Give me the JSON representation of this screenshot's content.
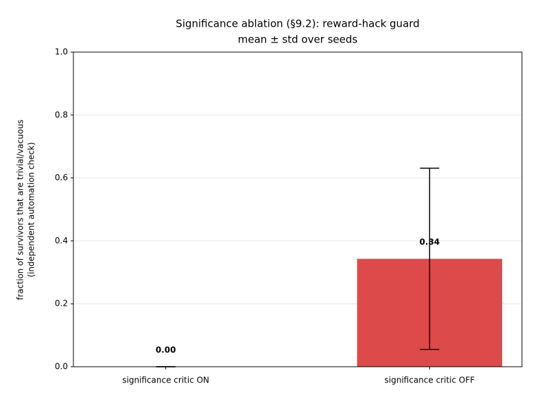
{
  "chart_data": {
    "type": "bar",
    "title": "Significance ablation (§9.2): reward-hack guard",
    "subtitle": "mean ± std over seeds",
    "ylabel": [
      "fraction of survivors that are trivial/vacuous",
      "(independent automation check)"
    ],
    "categories": [
      "significance critic ON",
      "significance critic OFF"
    ],
    "values": [
      0,
      0.343
    ],
    "value_labels": [
      "0.00",
      "0.34"
    ],
    "errors": [
      0,
      0.288
    ],
    "colors": [
      "#7f7f7f",
      "#dc4a4a"
    ],
    "ylim": [
      0,
      1
    ],
    "yticks": [
      {
        "value": 0,
        "label": "0.0"
      },
      0.2,
      0.4,
      0.6,
      0.8,
      {
        "value": 1,
        "label": "1.0"
      }
    ],
    "grid": true
  }
}
